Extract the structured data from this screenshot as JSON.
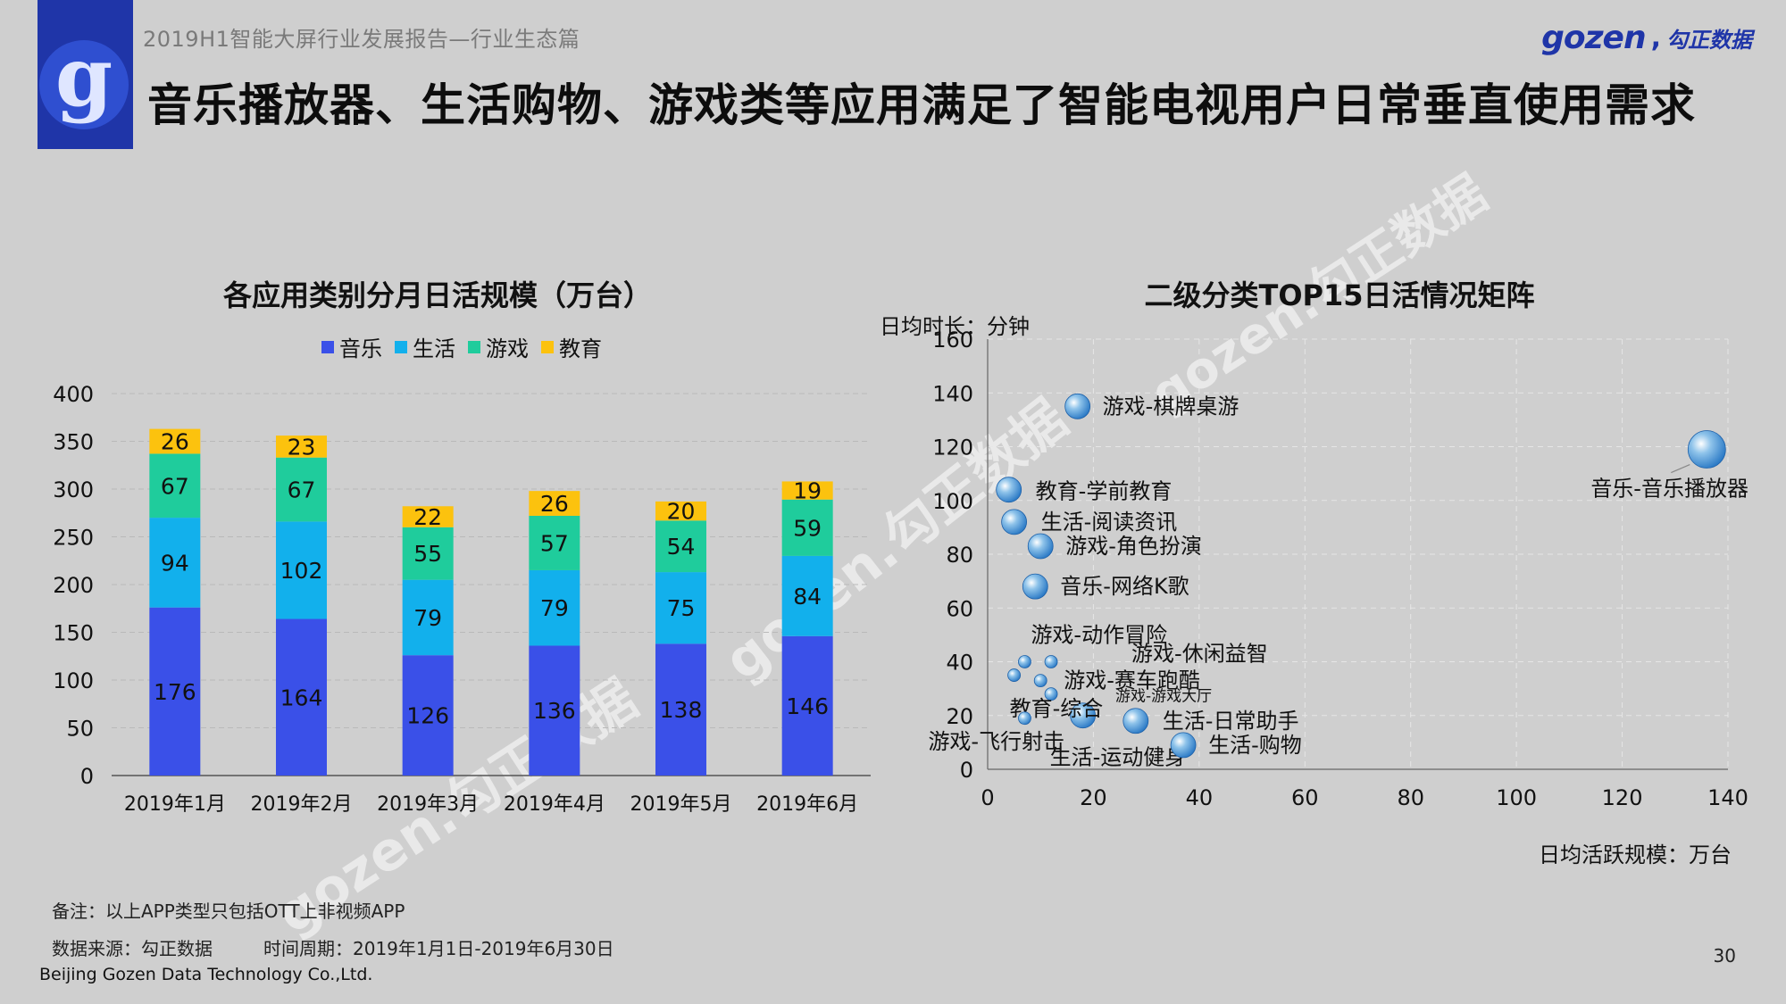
{
  "header": {
    "subtitle": "2019H1智能大屏行业发展报告—行业生态篇",
    "title": "音乐播放器、生活购物、游戏类等应用满足了智能电视用户日常垂直使用需求",
    "brand_latin": "gozen",
    "brand_cn": "勾正数据",
    "logo_letter": "g"
  },
  "watermark": {
    "text": "gozen.勾正数据"
  },
  "colors": {
    "music": "#3a50e8",
    "life": "#12b0ec",
    "game": "#1fcc9c",
    "edu": "#fcc20e",
    "background": "#cfcfcf",
    "logo_bg": "#1f35a8"
  },
  "chart_data": [
    {
      "type": "bar",
      "stacked": true,
      "title": "各应用类别分月日活规模（万台）",
      "categories": [
        "2019年1月",
        "2019年2月",
        "2019年3月",
        "2019年4月",
        "2019年5月",
        "2019年6月"
      ],
      "series": [
        {
          "name": "音乐",
          "key": "music",
          "values": [
            176,
            164,
            126,
            136,
            138,
            146
          ]
        },
        {
          "name": "生活",
          "key": "life",
          "values": [
            94,
            102,
            79,
            79,
            75,
            84
          ]
        },
        {
          "name": "游戏",
          "key": "game",
          "values": [
            67,
            67,
            55,
            57,
            54,
            59
          ]
        },
        {
          "name": "教育",
          "key": "edu",
          "values": [
            26,
            23,
            22,
            26,
            20,
            19
          ]
        }
      ],
      "ylim": [
        0,
        400
      ],
      "yticks": [
        0,
        50,
        100,
        150,
        200,
        250,
        300,
        350,
        400
      ],
      "legend": "top"
    },
    {
      "type": "scatter",
      "title": "二级分类TOP15日活情况矩阵",
      "xlabel": "日均活跃规模：万台",
      "ylabel": "日均时长：分钟",
      "xlim": [
        0,
        140
      ],
      "ylim": [
        0,
        160
      ],
      "xticks": [
        0,
        20,
        40,
        60,
        80,
        100,
        120,
        140
      ],
      "yticks": [
        0,
        20,
        40,
        60,
        80,
        100,
        120,
        140,
        160
      ],
      "points": [
        {
          "label": "音乐-音乐播放器",
          "x": 136,
          "y": 119,
          "size": 3
        },
        {
          "label": "游戏-棋牌桌游",
          "x": 17,
          "y": 135,
          "size": 2
        },
        {
          "label": "教育-学前教育",
          "x": 4,
          "y": 104,
          "size": 2
        },
        {
          "label": "生活-阅读资讯",
          "x": 5,
          "y": 92,
          "size": 2
        },
        {
          "label": "游戏-角色扮演",
          "x": 10,
          "y": 83,
          "size": 2
        },
        {
          "label": "音乐-网络K歌",
          "x": 9,
          "y": 68,
          "size": 2
        },
        {
          "label": "游戏-动作冒险",
          "x": 7,
          "y": 40,
          "size": 1
        },
        {
          "label": "游戏-休闲益智",
          "x": 12,
          "y": 40,
          "size": 1
        },
        {
          "label": "游戏-赛车跑酷",
          "x": 10,
          "y": 33,
          "size": 1
        },
        {
          "label": "游戏-游戏大厅",
          "x": 12,
          "y": 28,
          "size": 1
        },
        {
          "label": "教育-综合",
          "x": 18,
          "y": 20,
          "size": 2
        },
        {
          "label": "游戏-飞行射击",
          "x": 7,
          "y": 19,
          "size": 1
        },
        {
          "label": "生活-日常助手",
          "x": 28,
          "y": 18,
          "size": 2
        },
        {
          "label": "生活-运动健身",
          "x": 5,
          "y": 35,
          "size": 1
        },
        {
          "label": "生活-购物",
          "x": 37,
          "y": 9,
          "size": 2
        }
      ]
    }
  ],
  "footer": {
    "note": "备注：以上APP类型只包括OTT上非视频APP",
    "source": "数据来源：勾正数据",
    "period": "时间周期：2019年1月1日-2019年6月30日",
    "company": "Beijing Gozen Data Technology Co.,Ltd.",
    "page_number": "30"
  }
}
